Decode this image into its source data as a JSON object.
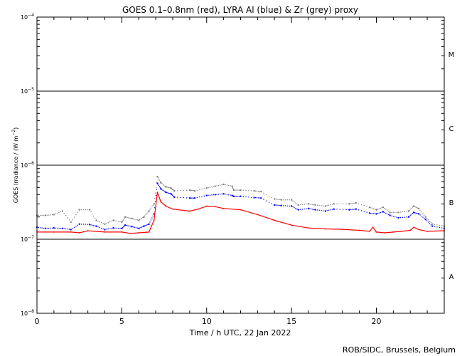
{
  "chart_data": {
    "type": "line",
    "title": "GOES 0.1–0.8nm (red), LYRA Al (blue) & Zr (grey) proxy",
    "xlabel": "Time / h UTC, 22 Jan 2022",
    "ylabel_parts": [
      "GOES Irradiance / (W m",
      "−2",
      ")"
    ],
    "credit": "ROB/SIDC, Brussels, Belgium",
    "xlim": [
      0,
      24
    ],
    "ylim_log10": [
      -8,
      -4
    ],
    "y_scale": "log",
    "x_ticks": [
      0,
      5,
      10,
      15,
      20
    ],
    "y_ticks": [
      {
        "base": "10",
        "exp": "−4",
        "log10": -4
      },
      {
        "base": "10",
        "exp": "−5",
        "log10": -5
      },
      {
        "base": "10",
        "exp": "−6",
        "log10": -6
      },
      {
        "base": "10",
        "exp": "−7",
        "log10": -7
      },
      {
        "base": "10",
        "exp": "−8",
        "log10": -8
      }
    ],
    "flare_levels": [
      {
        "label": "M",
        "log10": -4.5
      },
      {
        "label": "C",
        "log10": -5.5
      },
      {
        "label": "B",
        "log10": -6.5
      },
      {
        "label": "A",
        "log10": -7.5
      }
    ],
    "class_lines_log10": [
      -5,
      -6,
      -7
    ],
    "series": [
      {
        "color": "#ff0000",
        "style": "line",
        "x": [
          0,
          1,
          2,
          2.5,
          3,
          4,
          5,
          5.5,
          6,
          6.6,
          6.9,
          7.1,
          7.3,
          7.6,
          8,
          9,
          9.5,
          10,
          10.5,
          11,
          12,
          13,
          14,
          15,
          16,
          17,
          18,
          19,
          19.6,
          19.8,
          20,
          20.5,
          21,
          21.5,
          22,
          22.2,
          22.5,
          23,
          24
        ],
        "y": [
          1.25e-07,
          1.25e-07,
          1.25e-07,
          1.22e-07,
          1.3e-07,
          1.25e-07,
          1.25e-07,
          1.2e-07,
          1.22e-07,
          1.25e-07,
          1.8e-07,
          4.3e-07,
          3.2e-07,
          2.8e-07,
          2.55e-07,
          2.4e-07,
          2.55e-07,
          2.8e-07,
          2.75e-07,
          2.6e-07,
          2.5e-07,
          2.15e-07,
          1.8e-07,
          1.55e-07,
          1.42e-07,
          1.38e-07,
          1.36e-07,
          1.32e-07,
          1.28e-07,
          1.45e-07,
          1.25e-07,
          1.22e-07,
          1.25e-07,
          1.28e-07,
          1.32e-07,
          1.45e-07,
          1.35e-07,
          1.28e-07,
          1.3e-07
        ]
      },
      {
        "color": "#0000ff",
        "style": "dots",
        "x": [
          0,
          0.5,
          1,
          1.5,
          2,
          2.5,
          3.1,
          3.5,
          4,
          4.5,
          5,
          5.2,
          5.6,
          6,
          6.3,
          6.6,
          6.9,
          7.1,
          7.3,
          7.6,
          7.9,
          8.1,
          9,
          9.3,
          10,
          10.5,
          11,
          11.5,
          11.6,
          12,
          12.8,
          13.2,
          14,
          14.4,
          15,
          15.4,
          16,
          16.4,
          17,
          17.5,
          18.4,
          18.8,
          19.6,
          20,
          20.4,
          20.8,
          21.3,
          21.9,
          22.2,
          22.5,
          22.9,
          23.3,
          24
        ],
        "y": [
          1.45e-07,
          1.4e-07,
          1.42e-07,
          1.4e-07,
          1.35e-07,
          1.6e-07,
          1.58e-07,
          1.5e-07,
          1.35e-07,
          1.42e-07,
          1.4e-07,
          1.55e-07,
          1.48e-07,
          1.4e-07,
          1.5e-07,
          1.6e-07,
          2.2e-07,
          5.7e-07,
          4.8e-07,
          4.3e-07,
          4.1e-07,
          3.7e-07,
          3.6e-07,
          3.6e-07,
          3.9e-07,
          4e-07,
          4.1e-07,
          3.9e-07,
          3.8e-07,
          3.8e-07,
          3.65e-07,
          3.6e-07,
          2.9e-07,
          2.85e-07,
          2.8e-07,
          2.5e-07,
          2.6e-07,
          2.5e-07,
          2.4e-07,
          2.55e-07,
          2.5e-07,
          2.55e-07,
          2.25e-07,
          2.2e-07,
          2.35e-07,
          2.1e-07,
          1.95e-07,
          2e-07,
          2.3e-07,
          2.2e-07,
          1.85e-07,
          1.5e-07,
          1.4e-07
        ]
      },
      {
        "color": "#808080",
        "style": "dots",
        "x": [
          0,
          0.5,
          1,
          1.5,
          2,
          2.5,
          3.1,
          3.5,
          4,
          4.5,
          5,
          5.2,
          5.6,
          6,
          6.3,
          6.6,
          6.9,
          7.1,
          7.3,
          7.6,
          7.9,
          8.1,
          9,
          9.3,
          10,
          10.5,
          11,
          11.5,
          11.6,
          12,
          12.8,
          13.2,
          14,
          14.4,
          15,
          15.4,
          16,
          16.4,
          17,
          17.5,
          18.4,
          18.8,
          19.6,
          20,
          20.4,
          20.8,
          21.3,
          21.9,
          22.2,
          22.5,
          22.9,
          23.3,
          24
        ],
        "y": [
          2.1e-07,
          2.1e-07,
          2.15e-07,
          2.4e-07,
          1.7e-07,
          2.5e-07,
          2.5e-07,
          1.8e-07,
          1.6e-07,
          1.8e-07,
          1.7e-07,
          2e-07,
          1.9e-07,
          1.8e-07,
          2e-07,
          2.4e-07,
          3e-07,
          7e-07,
          5.8e-07,
          5.1e-07,
          4.9e-07,
          4.5e-07,
          4.6e-07,
          4.5e-07,
          4.9e-07,
          5.2e-07,
          5.5e-07,
          5.2e-07,
          4.6e-07,
          4.6e-07,
          4.5e-07,
          4.4e-07,
          3.5e-07,
          3.4e-07,
          3.4e-07,
          2.9e-07,
          3e-07,
          2.9e-07,
          2.8e-07,
          3e-07,
          3e-07,
          3.1e-07,
          2.7e-07,
          2.5e-07,
          2.7e-07,
          2.3e-07,
          2.3e-07,
          2.4e-07,
          2.8e-07,
          2.6e-07,
          2e-07,
          1.6e-07,
          1.5e-07
        ]
      }
    ]
  }
}
